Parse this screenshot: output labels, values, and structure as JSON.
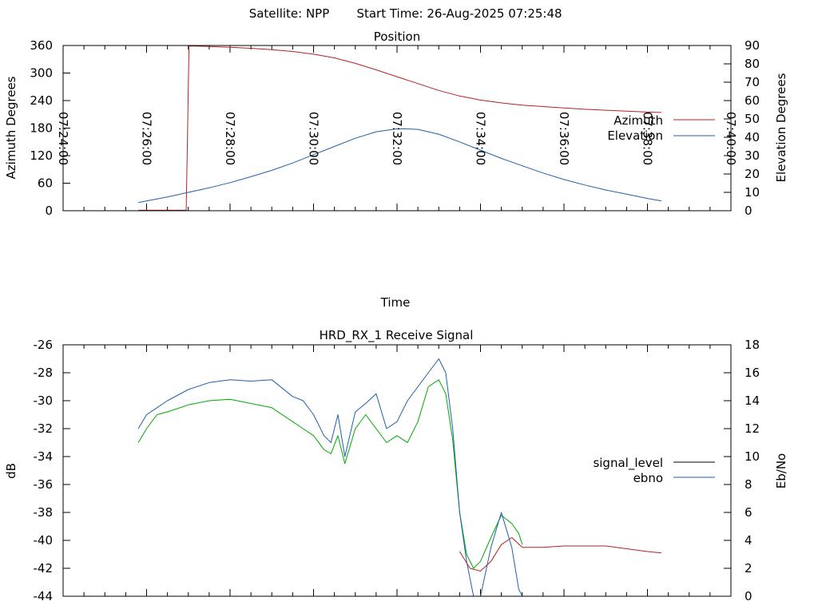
{
  "header": {
    "satellite_label": "Satellite: NPP",
    "start_time_label": "Start Time: 26-Aug-2025 07:25:48"
  },
  "chart_data": [
    {
      "type": "line",
      "title": "Position",
      "xlabel": "Time",
      "ylabel": "Azimuth Degrees",
      "y2label": "Elevation Degrees",
      "xlim": [
        "07:24:00",
        "07:40:00"
      ],
      "ylim": [
        0,
        360
      ],
      "y2lim": [
        0,
        90
      ],
      "x_ticks": [
        "07:24:00",
        "07:26:00",
        "07:28:00",
        "07:30:00",
        "07:32:00",
        "07:34:00",
        "07:36:00",
        "07:38:00",
        "07:40:00"
      ],
      "y_ticks": [
        "0",
        "60",
        "120",
        "180",
        "240",
        "300",
        "360"
      ],
      "y2_ticks": [
        "0",
        "10",
        "20",
        "30",
        "40",
        "50",
        "60",
        "70",
        "80",
        "90"
      ],
      "legend": "right",
      "series": [
        {
          "name": "Azimuth",
          "axis": "y",
          "color": "#b22222",
          "x": [
            "07:25:48",
            "07:26:30",
            "07:26:57",
            "07:26:59",
            "07:27:01",
            "07:27:30",
            "07:28:00",
            "07:28:30",
            "07:29:00",
            "07:29:30",
            "07:30:00",
            "07:30:30",
            "07:31:00",
            "07:31:30",
            "07:32:00",
            "07:32:30",
            "07:33:00",
            "07:33:30",
            "07:34:00",
            "07:34:30",
            "07:35:00",
            "07:35:30",
            "07:36:00",
            "07:36:30",
            "07:37:00",
            "07:37:30",
            "07:38:00",
            "07:38:20"
          ],
          "values": [
            1,
            1,
            1,
            180,
            359,
            358,
            356,
            354,
            351,
            347,
            341,
            333,
            321,
            307,
            292,
            277,
            262,
            250,
            241,
            235,
            230,
            227,
            224,
            221,
            219,
            217,
            215,
            214
          ]
        },
        {
          "name": "Elevation",
          "axis": "y2",
          "color": "#1f5fa8",
          "x": [
            "07:25:48",
            "07:26:30",
            "07:27:00",
            "07:27:30",
            "07:28:00",
            "07:28:30",
            "07:29:00",
            "07:29:30",
            "07:30:00",
            "07:30:30",
            "07:31:00",
            "07:31:30",
            "07:32:00",
            "07:32:10",
            "07:32:30",
            "07:33:00",
            "07:33:30",
            "07:34:00",
            "07:34:30",
            "07:35:00",
            "07:35:30",
            "07:36:00",
            "07:36:30",
            "07:37:00",
            "07:37:30",
            "07:38:00",
            "07:38:20"
          ],
          "values": [
            4.5,
            7.5,
            10,
            12.5,
            15.3,
            18.5,
            22,
            26,
            30.5,
            35,
            39.5,
            43,
            44.6,
            44.7,
            44.3,
            41.7,
            37.5,
            33,
            28.5,
            24.5,
            20.5,
            17,
            14,
            11.3,
            9,
            6.7,
            5.3
          ]
        }
      ]
    },
    {
      "type": "line",
      "title": "HRD_RX_1 Receive Signal",
      "xlabel": "",
      "ylabel": "dB",
      "y2label": "Eb/No",
      "xlim": [
        "07:24:00",
        "07:40:00"
      ],
      "ylim": [
        -44,
        -26
      ],
      "y2lim": [
        0,
        18
      ],
      "y_ticks": [
        "-26",
        "-28",
        "-30",
        "-32",
        "-34",
        "-36",
        "-38",
        "-40",
        "-42",
        "-44"
      ],
      "y2_ticks": [
        "0",
        "2",
        "4",
        "6",
        "8",
        "10",
        "12",
        "14",
        "16",
        "18"
      ],
      "legend": "right",
      "legend_entries": [
        {
          "name": "signal_level",
          "color": "#000000"
        },
        {
          "name": "ebno",
          "color": "#1f5fa8"
        }
      ],
      "series": [
        {
          "name": "signal_level",
          "axis": "y",
          "color": "#00aa00",
          "x": [
            "07:25:48",
            "07:26:00",
            "07:26:15",
            "07:26:30",
            "07:27:00",
            "07:27:30",
            "07:28:00",
            "07:28:30",
            "07:29:00",
            "07:29:30",
            "07:29:45",
            "07:30:00",
            "07:30:15",
            "07:30:25",
            "07:30:35",
            "07:30:45",
            "07:31:00",
            "07:31:15",
            "07:31:30",
            "07:31:45",
            "07:32:00",
            "07:32:15",
            "07:32:30",
            "07:32:45",
            "07:33:00",
            "07:33:10",
            "07:33:20",
            "07:33:30",
            "07:33:40",
            "07:33:50",
            "07:34:00",
            "07:34:15",
            "07:34:30",
            "07:34:45",
            "07:34:55",
            "07:35:00"
          ],
          "values": [
            -33,
            -32,
            -31,
            -30.8,
            -30.3,
            -30,
            -29.9,
            -30.2,
            -30.5,
            -31.5,
            -32,
            -32.5,
            -33.5,
            -33.8,
            -32.5,
            -34.5,
            -32,
            -31,
            -32,
            -33,
            -32.5,
            -33,
            -31.5,
            -29,
            -28.5,
            -29.5,
            -32.8,
            -38,
            -41,
            -42,
            -41.5,
            -39.8,
            -38.2,
            -38.8,
            -39.5,
            -40.3
          ]
        },
        {
          "name": "ebno",
          "axis": "y2",
          "color": "#1f5fa8",
          "x": [
            "07:25:48",
            "07:26:00",
            "07:26:15",
            "07:26:30",
            "07:27:00",
            "07:27:30",
            "07:28:00",
            "07:28:30",
            "07:29:00",
            "07:29:30",
            "07:29:45",
            "07:30:00",
            "07:30:15",
            "07:30:25",
            "07:30:35",
            "07:30:45",
            "07:31:00",
            "07:31:15",
            "07:31:30",
            "07:31:45",
            "07:32:00",
            "07:32:15",
            "07:32:30",
            "07:32:45",
            "07:33:00",
            "07:33:10",
            "07:33:20",
            "07:33:30",
            "07:33:40",
            "07:33:50",
            "07:34:00",
            "07:34:15",
            "07:34:30",
            "07:34:45",
            "07:34:55",
            "07:35:00"
          ],
          "values": [
            12,
            13,
            13.5,
            14,
            14.8,
            15.3,
            15.5,
            15.4,
            15.5,
            14.3,
            14,
            13,
            11.5,
            11,
            13,
            10,
            13.2,
            13.8,
            14.5,
            12,
            12.5,
            14,
            15,
            16,
            17,
            16,
            12,
            6,
            2.5,
            0,
            0,
            3.5,
            6,
            3.5,
            0.5,
            0
          ]
        },
        {
          "name": "",
          "axis": "y",
          "color": "#b22222",
          "x": [
            "07:33:30",
            "07:33:45",
            "07:34:00",
            "07:34:15",
            "07:34:30",
            "07:34:45",
            "07:35:00",
            "07:35:30",
            "07:36:00",
            "07:36:30",
            "07:37:00",
            "07:37:30",
            "07:38:00",
            "07:38:20"
          ],
          "values": [
            -40.8,
            -42,
            -42.2,
            -41.5,
            -40.3,
            -39.8,
            -40.5,
            -40.5,
            -40.4,
            -40.4,
            -40.4,
            -40.6,
            -40.8,
            -40.9
          ]
        }
      ]
    }
  ]
}
